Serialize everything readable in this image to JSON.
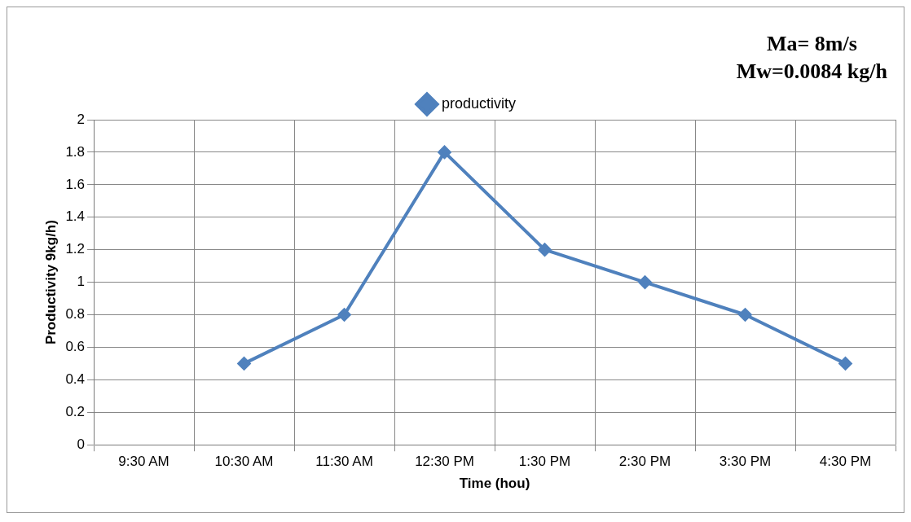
{
  "chart_data": {
    "type": "line",
    "xlabel": "Time (hou)",
    "ylabel": "Productivity 9kg/h)",
    "annotations": [
      "Ma= 8m/s",
      "Mw=0.0084 kg/h"
    ],
    "categories": [
      "9:30 AM",
      "10:30 AM",
      "11:30 AM",
      "12:30 PM",
      "1:30 PM",
      "2:30 PM",
      "3:30 PM",
      "4:30 PM"
    ],
    "series": [
      {
        "name": "productivity",
        "color": "#4f81bd",
        "values": [
          null,
          0.5,
          0.8,
          1.8,
          1.2,
          1.0,
          0.8,
          0.5
        ]
      }
    ],
    "ylim": [
      0,
      2
    ],
    "yticks": [
      0,
      0.2,
      0.4,
      0.6,
      0.8,
      1,
      1.2,
      1.4,
      1.6,
      1.8,
      2
    ],
    "grid": true,
    "legend": "top",
    "marker": "diamond",
    "line_style": "solid"
  }
}
